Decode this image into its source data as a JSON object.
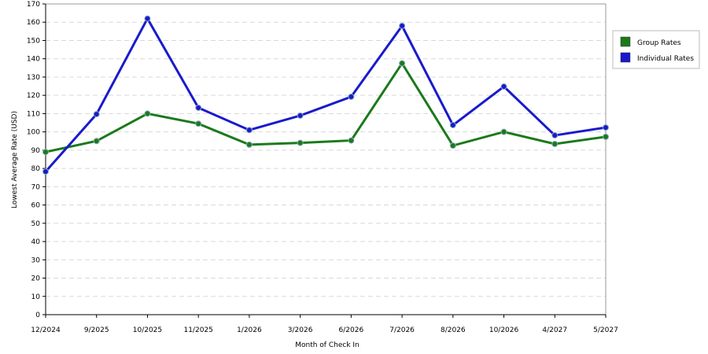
{
  "chart_data": {
    "type": "line",
    "x_label": "Month of Check In",
    "y_label": "Lowest Average Rate (USD)",
    "categories": [
      "12/2024",
      "9/2025",
      "10/2025",
      "11/2025",
      "1/2026",
      "3/2026",
      "6/2026",
      "7/2026",
      "8/2026",
      "10/2026",
      "4/2027",
      "5/2027"
    ],
    "series": [
      {
        "name": "Group Rates",
        "color": "#1a7a1a",
        "values": [
          89,
          95,
          110,
          104.5,
          93,
          94,
          95.3,
          137.5,
          92.5,
          100,
          93.4,
          97.3
        ]
      },
      {
        "name": "Individual Rates",
        "color": "#1a1acc",
        "values": [
          78.3,
          109.7,
          162,
          113.2,
          101,
          108.9,
          119.2,
          158,
          103.7,
          124.8,
          98.1,
          102.4
        ]
      }
    ],
    "ylim": [
      0,
      170
    ],
    "yticks": [
      0,
      10,
      20,
      30,
      40,
      50,
      60,
      70,
      80,
      90,
      100,
      110,
      120,
      130,
      140,
      150,
      160,
      170
    ],
    "grid": true,
    "legend": "right"
  }
}
